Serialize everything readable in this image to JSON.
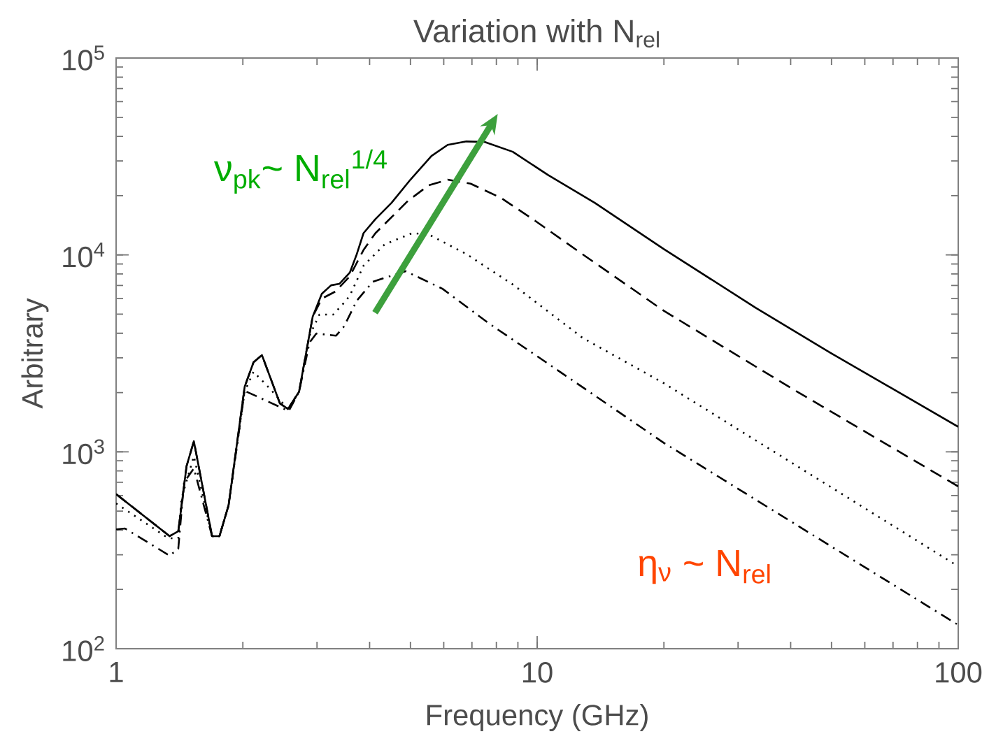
{
  "chart_data": {
    "type": "line",
    "title": "Variation with N$_{rel}$",
    "xlabel": "Frequency (GHz)",
    "ylabel": "Arbitrary",
    "log": "xy",
    "xlim": [
      1,
      100
    ],
    "ylim": [
      100,
      100000
    ],
    "xticks": [
      1,
      10,
      100
    ],
    "yticks": [
      {
        "value": 100,
        "label": "10$^{2}$"
      },
      {
        "value": 1000,
        "label": "10$^{3}$"
      },
      {
        "value": 10000,
        "label": "10$^{4}$"
      },
      {
        "value": 100000,
        "label": "10$^{5}$"
      }
    ],
    "series": [
      {
        "color": "#000000",
        "line_style": "solid",
        "x": [
          1,
          1.34,
          1.405,
          1.47,
          1.53,
          1.69,
          1.76,
          1.85,
          2.02,
          2.12,
          2.22,
          2.45,
          2.56,
          2.72,
          2.93,
          3.08,
          3.24,
          3.39,
          3.59,
          3.73,
          3.87,
          4.13,
          4.51,
          5.0,
          5.61,
          6.13,
          6.79,
          7.5,
          8.75,
          10.6,
          13.7,
          20,
          33,
          50,
          100
        ],
        "values": [
          610,
          373,
          395,
          845,
          1132,
          373,
          373,
          535,
          2140,
          2850,
          3100,
          1760,
          1650,
          2020,
          4860,
          6350,
          7010,
          7130,
          8130,
          10100,
          12900,
          15200,
          18400,
          24100,
          31800,
          36200,
          37700,
          37500,
          33400,
          25500,
          18400,
          10700,
          5400,
          3160,
          1340
        ]
      },
      {
        "color": "#000000",
        "line_style": "dashed",
        "x": [
          1,
          1.34,
          1.405,
          1.47,
          1.53,
          1.69,
          1.76,
          1.85,
          2.02,
          2.12,
          2.22,
          2.45,
          2.56,
          2.72,
          2.93,
          3.08,
          3.32,
          3.59,
          3.87,
          4.13,
          4.93,
          5.53,
          6.13,
          6.95,
          8.2,
          9.94,
          12.8,
          20,
          40.2,
          100
        ],
        "values": [
          610,
          373,
          395,
          845,
          1132,
          373,
          373,
          535,
          2140,
          2850,
          3100,
          1760,
          1650,
          2020,
          4860,
          6000,
          6520,
          7800,
          10600,
          12900,
          18800,
          22600,
          24100,
          23000,
          19500,
          14800,
          10100,
          5200,
          2100,
          667
        ]
      },
      {
        "color": "#000000",
        "line_style": "dotted",
        "x": [
          1,
          1.33,
          1.405,
          1.43,
          1.53,
          1.69,
          1.76,
          1.85,
          2.02,
          2.12,
          2.33,
          2.56,
          2.72,
          2.88,
          3.04,
          3.28,
          3.48,
          3.59,
          3.87,
          4.34,
          5.05,
          5.53,
          6.79,
          8.75,
          12.8,
          20,
          100
        ],
        "values": [
          547,
          364,
          364,
          580,
          950,
          373,
          373,
          535,
          2020,
          2550,
          2070,
          1650,
          2020,
          3890,
          4980,
          4980,
          5720,
          6210,
          8810,
          11300,
          12900,
          12700,
          10100,
          7080,
          3800,
          2230,
          262
        ]
      },
      {
        "color": "#000000",
        "line_style": "dashdot",
        "x": [
          1,
          1.05,
          1.34,
          1.405,
          1.45,
          1.53,
          1.69,
          1.76,
          1.85,
          2.02,
          2.21,
          2.57,
          2.72,
          2.88,
          2.99,
          3.33,
          3.48,
          3.73,
          4.07,
          4.87,
          5.96,
          7.69,
          10.6,
          20,
          100
        ],
        "values": [
          404,
          408,
          297,
          322,
          700,
          824,
          373,
          373,
          535,
          2040,
          1870,
          1610,
          2020,
          3590,
          3990,
          3890,
          4340,
          5860,
          7310,
          8270,
          6730,
          4480,
          2810,
          1110,
          132
        ]
      }
    ],
    "annotations": [
      "ν$_{pk}$~ N$_{rel}$$^{1/4}$",
      "η$_{ν}$ ~ N$_{rel}$"
    ]
  }
}
